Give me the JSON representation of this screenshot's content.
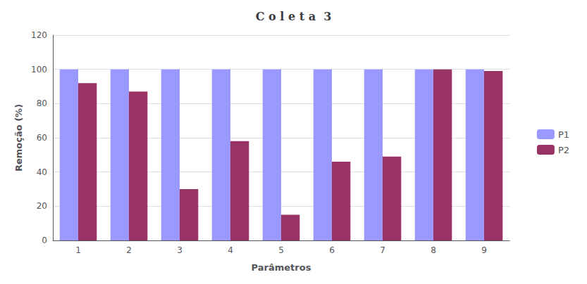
{
  "chart_data": {
    "type": "bar",
    "title": "C o l e t a  3",
    "xlabel": "Parâmetros",
    "ylabel": "Remoção (%)",
    "categories": [
      "1",
      "2",
      "3",
      "4",
      "5",
      "6",
      "7",
      "8",
      "9"
    ],
    "series": [
      {
        "name": "P1",
        "color": "#9999FF",
        "values": [
          100,
          100,
          100,
          100,
          100,
          100,
          100,
          100,
          100
        ]
      },
      {
        "name": "P2",
        "color": "#993366",
        "values": [
          92,
          87,
          30,
          58,
          15,
          46,
          49,
          100,
          99
        ]
      }
    ],
    "ylim": [
      0,
      120
    ],
    "yticks": [
      0,
      20,
      40,
      60,
      80,
      100,
      120
    ],
    "grid": true,
    "legend": "right"
  }
}
